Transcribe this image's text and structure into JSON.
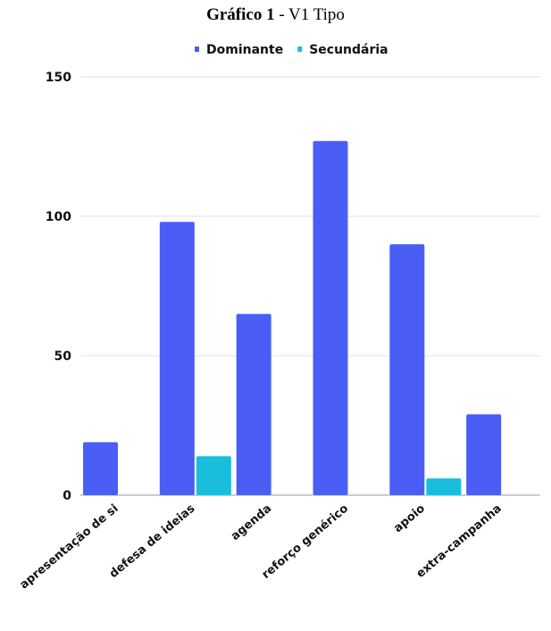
{
  "chart_data": {
    "type": "bar",
    "title_bold": "Gráfico 1",
    "title_rest": " - V1 Tipo",
    "categories": [
      "apresentação de si",
      "defesa de ideias",
      "agenda",
      "reforço genérico",
      "apoio",
      "extra-campanha"
    ],
    "series": [
      {
        "name": "Dominante",
        "color": "#4a5ef5",
        "values": [
          19,
          98,
          65,
          127,
          90,
          29
        ]
      },
      {
        "name": "Secundária",
        "color": "#19bedd",
        "values": [
          0,
          14,
          0,
          0,
          6,
          0
        ]
      }
    ],
    "ylim": [
      0,
      150
    ],
    "yticks": [
      0,
      50,
      100,
      150
    ],
    "legend_position": "top-center",
    "grid": true
  }
}
